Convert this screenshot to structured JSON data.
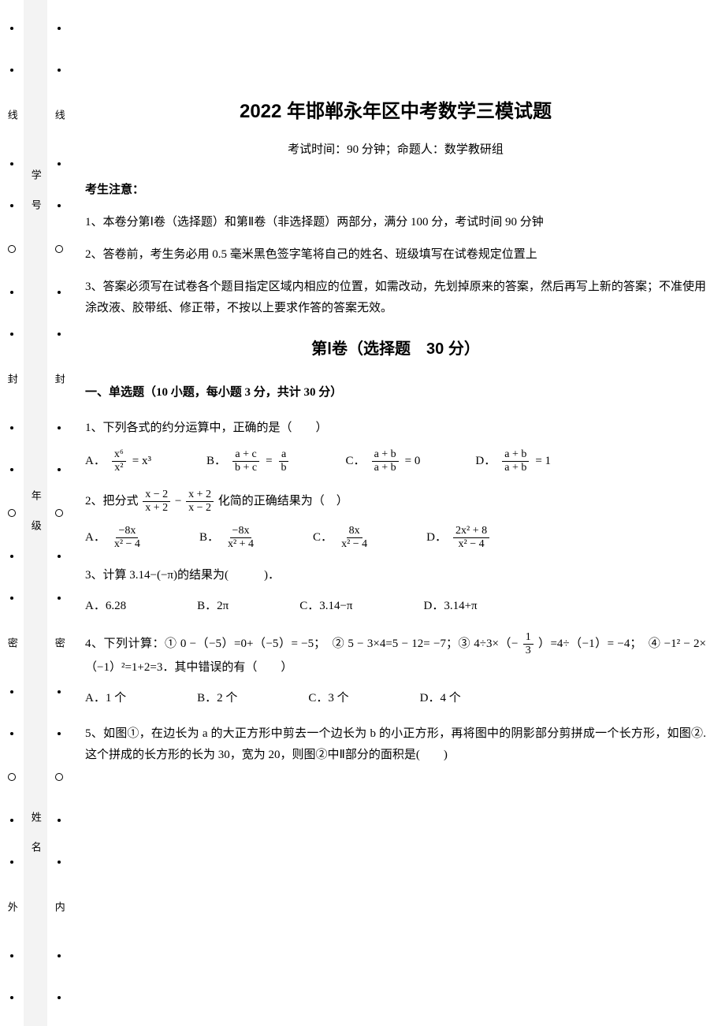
{
  "page": {
    "background_color": "#ffffff",
    "text_color": "#000000",
    "binding_shade": "#f3f3f3"
  },
  "binding": {
    "outer": [
      "外",
      "密",
      "封",
      "线"
    ],
    "inner": [
      "内",
      "密",
      "封",
      "线"
    ],
    "labels": [
      "姓　名",
      "年　级",
      "学　号"
    ]
  },
  "header": {
    "title": "2022 年邯郸永年区中考数学三模试题",
    "subtitle": "考试时间：90 分钟；命题人：数学教研组"
  },
  "notice": {
    "head": "考生注意：",
    "items": [
      "1、本卷分第Ⅰ卷（选择题）和第Ⅱ卷（非选择题）两部分，满分 100 分，考试时间 90 分钟",
      "2、答卷前，考生务必用 0.5 毫米黑色签字笔将自己的姓名、班级填写在试卷规定位置上",
      "3、答案必须写在试卷各个题目指定区域内相应的位置，如需改动，先划掉原来的答案，然后再写上新的答案；不准使用涂改液、胶带纸、修正带，不按以上要求作答的答案无效。"
    ]
  },
  "section1": {
    "title": "第Ⅰ卷（选择题　30 分）",
    "group_title": "一、单选题（10 小题，每小题 3 分，共计 30 分）"
  },
  "q1": {
    "stem": "1、下列各式的约分运算中，正确的是（　　）",
    "A_lhs_num": "x⁶",
    "A_lhs_den": "x²",
    "A_rhs": "= x³",
    "B_lhs_num": "a + c",
    "B_lhs_den": "b + c",
    "B_rhs_num": "a",
    "B_rhs_den": "b",
    "C_lhs_num": "a + b",
    "C_lhs_den": "a + b",
    "C_rhs": "= 0",
    "D_lhs_num": "a + b",
    "D_lhs_den": "a + b",
    "D_rhs": "= 1"
  },
  "q2": {
    "stem_pre": "2、把分式",
    "t1_num": "x − 2",
    "t1_den": "x + 2",
    "t2_num": "x + 2",
    "t2_den": "x − 2",
    "stem_post": "化简的正确结果为（　）",
    "A_num": "−8x",
    "A_den": "x² − 4",
    "B_num": "−8x",
    "B_den": "x² + 4",
    "C_num": "8x",
    "C_den": "x² − 4",
    "D_num": "2x² + 8",
    "D_den": "x² − 4"
  },
  "q3": {
    "stem": "3、计算 3.14−(−π)的结果为(　　　)．",
    "A": "A．6.28",
    "B": "B．2π",
    "C": "C．3.14−π",
    "D": "D．3.14+π"
  },
  "q4": {
    "stem_pre": "4、下列计算：①  0 −（−5）=0+（−5）= −5；　②  5 − 3×4=5 − 12= −7；③  4÷3×（−",
    "frac_num": "1",
    "frac_den": "3",
    "stem_mid": "）=4÷（−1）= −4；　④  −1² − 2×（−1）²=1+2=3．其中错误的有（　　）",
    "A": "A．1 个",
    "B": "B．2 个",
    "C": "C．3 个",
    "D": "D．4 个"
  },
  "q5": {
    "stem": "5、如图①，在边长为 a 的大正方形中剪去一个边长为 b 的小正方形，再将图中的阴影部分剪拼成一个长方形，如图②.这个拼成的长方形的长为 30，宽为 20，则图②中Ⅱ部分的面积是(　　)"
  }
}
